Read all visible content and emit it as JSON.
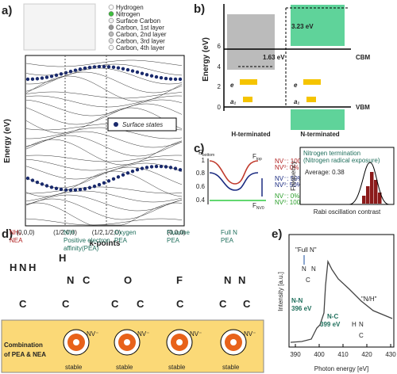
{
  "panel_a": {
    "label": "a)",
    "legend": [
      "Hydrogen",
      "Nitrogen",
      "Surface Carbon",
      "Carbon, 1st layer",
      "Carbon, 2nd layer",
      "Carbon, 3rd layer",
      "Carbon, 4th layer"
    ],
    "y_label": "Energy (eV)",
    "x_label": "k-points",
    "x_ticks": [
      "(0,0,0)",
      "(1/2,0,0)",
      "(1/2,1/2,0)",
      "(0,0,0)"
    ],
    "inset_legend": "Surface states"
  },
  "panel_b": {
    "label": "b)",
    "y_label": "Energy (eV)",
    "y_ticks": [
      "0",
      "2",
      "4",
      "6"
    ],
    "gap_n": "3.23 eV",
    "gap_h": "1.63 eV",
    "cbm": "CBM",
    "vbm": "VBM",
    "electron": "e",
    "acceptor": "a₁",
    "terminations": [
      "H-terminated",
      "N-terminated"
    ]
  },
  "panel_c": {
    "label": "c)",
    "f_bottom": [
      "F",
      "bottom"
    ],
    "f_top": [
      "F",
      "top"
    ],
    "f_nv0": [
      "F",
      "NV0"
    ],
    "y_ticks": [
      "1",
      "0.8",
      "0.6",
      "0.4"
    ],
    "states": [
      [
        "NV⁻: 100%",
        "NV⁰:   0%"
      ],
      [
        "NV⁻:   50%",
        "NV⁰:   50%"
      ],
      [
        "NV⁻:     0%",
        "NV⁰: 100%"
      ]
    ],
    "hist_title": "Nitrogen termination",
    "hist_subtitle": "(Nitrogen radical exposure)",
    "average": "Average: 0.38",
    "y_label": "Frequency",
    "x_label": "Rabi oscillation contrast"
  },
  "panel_d": {
    "label": "d)",
    "columns": [
      {
        "title": [
          "NH₂",
          "NEA"
        ],
        "atoms": [
          "H",
          "N",
          "H",
          "C"
        ]
      },
      {
        "title": [
          "N/H",
          "Positive electron",
          "affinity(PEA)"
        ],
        "atoms": [
          "H",
          "N",
          "C",
          "C"
        ]
      },
      {
        "title": [
          "Oxygen",
          "PEA"
        ],
        "atoms": [
          "O",
          "C",
          "C"
        ]
      },
      {
        "title": [
          "Fluorine",
          "PEA"
        ],
        "atoms": [
          "F",
          "C"
        ]
      },
      {
        "title": [
          "Full N",
          "PEA"
        ],
        "atoms": [
          "N",
          "N",
          "C",
          "C"
        ]
      }
    ],
    "combination": [
      "Combination",
      "of PEA & NEA"
    ],
    "nv": "NV⁻",
    "stable": "stable"
  },
  "panel_e": {
    "label": "e)",
    "y_label": "Intensity [a.u.]",
    "x_label": "Photon energy [eV]",
    "x_ticks": [
      "390",
      "400",
      "410",
      "420",
      "430"
    ],
    "full_n": "\"Full N\"",
    "nh": "\"N/H\"",
    "nn": [
      "N-N",
      "396 eV"
    ],
    "nc": [
      "N-C",
      "399 eV"
    ],
    "atoms_full": [
      "N",
      "N",
      "C"
    ],
    "atoms_nh": [
      "H",
      "N",
      "C"
    ]
  }
}
